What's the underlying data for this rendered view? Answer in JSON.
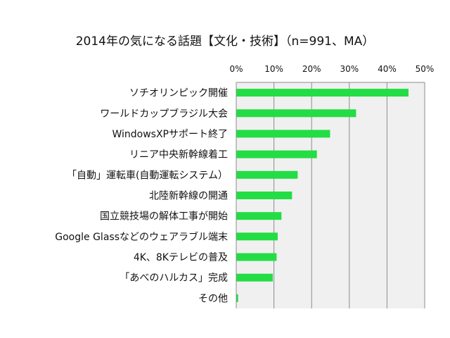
{
  "chart_data": {
    "type": "bar",
    "orientation": "horizontal",
    "title": "2014年の気になる話題【文化・技術】（n=991、MA）",
    "categories": [
      "ソチオリンピック開催",
      "ワールドカップブラジル大会",
      "WindowsXPサポート終了",
      "リニア中央新幹線着工",
      "「自動」運転車(自動運転システム）",
      "北陸新幹線の開通",
      "国立競技場の解体工事が開始",
      "Google Glassなどのウェアラブル端末",
      "4K、8Kテレビの普及",
      "「あべのハルカス」完成",
      "その他"
    ],
    "values": [
      45.7,
      31.8,
      24.9,
      21.4,
      16.3,
      14.8,
      12.0,
      11.0,
      10.7,
      9.7,
      0.5
    ],
    "xlim": [
      0,
      50
    ],
    "ticks": [
      "0%",
      "10%",
      "20%",
      "30%",
      "40%",
      "50%"
    ],
    "tick_values": [
      0,
      10,
      20,
      30,
      40,
      50
    ],
    "axis_position": "top",
    "grid": true,
    "bar_color": "#22dd44",
    "plot_background": "#f0f0f0",
    "grid_color": "#8c8c8c"
  }
}
